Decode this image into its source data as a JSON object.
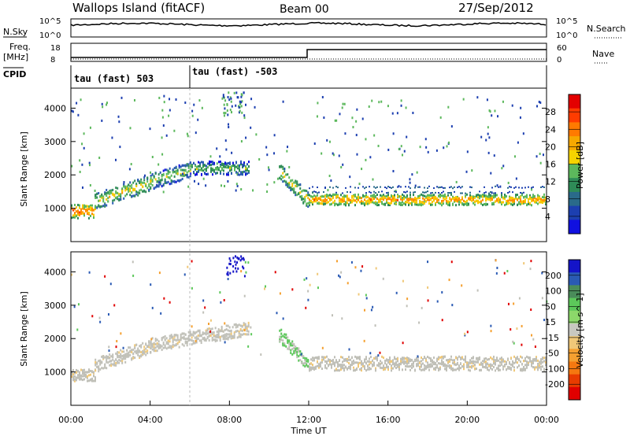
{
  "header": {
    "site": "Wallops Island (fitACF)",
    "beam": "Beam 00",
    "date": "27/Sep/2012"
  },
  "status_panels": {
    "nsky_label": "N.Sky",
    "nsky_ticks": [
      "10^5",
      "10^0"
    ],
    "nsearch_label": "N.Search",
    "nsearch_ticks": [
      "10^5",
      "10^0"
    ],
    "freq_label": "Freq.",
    "freq_unit": "[MHz]",
    "freq_ticks": [
      "18",
      "8"
    ],
    "nave_label": "Nave",
    "nave_ticks": [
      "60",
      "0"
    ],
    "cpid_label": "CPID",
    "cpid_segments": [
      "tau (fast) 503",
      "tau (fast) -503"
    ]
  },
  "panels": {
    "power": {
      "ylabel": "Slant Range [km]",
      "cbar_label": "Power [dB]",
      "cbar_ticks": [
        "28",
        "24",
        "20",
        "16",
        "12",
        "8",
        "4"
      ],
      "cbar_colors": [
        "#e30000",
        "#ff3c00",
        "#ff7a00",
        "#f6a800",
        "#f6d400",
        "#5cb85c",
        "#2e8b57",
        "#2a6a8a",
        "#1c3fb0",
        "#1010e0"
      ]
    },
    "velocity": {
      "ylabel": "Slant Range [km]",
      "cbar_label": "Velocity [m s^-1]",
      "cbar_ticks": [
        "200",
        "100",
        "50",
        "15",
        "-15",
        "-50",
        "-100",
        "-200"
      ],
      "cbar_colors": [
        "#1414c8",
        "#2a5ab4",
        "#4a8c5a",
        "#5cc85a",
        "#8cd86a",
        "#c8c8c0",
        "#f0c878",
        "#f5a030",
        "#f57810",
        "#e83c00",
        "#e00000"
      ]
    }
  },
  "axis": {
    "xlabel": "Time UT",
    "xticks": [
      "00:00",
      "04:00",
      "08:00",
      "12:00",
      "16:00",
      "20:00",
      "00:00"
    ],
    "yticks": [
      "1000",
      "2000",
      "3000",
      "4000"
    ]
  },
  "chart_data": [
    {
      "type": "heatmap",
      "title": "Wallops Island (fitACF)",
      "subtitle": "Beam 00",
      "xlabel": "Time UT",
      "ylabel": "Slant Range [km]",
      "xlim_hours": [
        0,
        24
      ],
      "ylim_km": [
        0,
        4600
      ],
      "colorbar": "Power [dB]",
      "colorbar_range": [
        0,
        30
      ],
      "bands": [
        {
          "t0": 0.0,
          "t1": 1.2,
          "r_center": 900,
          "width": 250,
          "value_db": 26
        },
        {
          "t0": 1.2,
          "t1": 4.0,
          "r_center": 1450,
          "width": 300,
          "value_db": 20
        },
        {
          "t0": 4.0,
          "t1": 6.0,
          "r_center": 1950,
          "width": 300,
          "value_db": 18
        },
        {
          "t0": 6.0,
          "t1": 9.0,
          "r_center": 2200,
          "width": 250,
          "value_db": 16
        },
        {
          "t0": 10.5,
          "t1": 12.0,
          "r_center": 1250,
          "width": 300,
          "value_db": 20
        },
        {
          "t0": 12.0,
          "t1": 24.0,
          "r_center": 1250,
          "width": 200,
          "value_db": 24
        }
      ]
    },
    {
      "type": "heatmap",
      "xlabel": "Time UT",
      "ylabel": "Slant Range [km]",
      "xlim_hours": [
        0,
        24
      ],
      "ylim_km": [
        0,
        4600
      ],
      "colorbar": "Velocity [m s^-1]",
      "colorbar_range": [
        -250,
        250
      ],
      "bands": [
        {
          "t0": 0.0,
          "t1": 1.2,
          "r_center": 900,
          "width": 250,
          "value_ms": 0
        },
        {
          "t0": 1.2,
          "t1": 4.0,
          "r_center": 1450,
          "width": 300,
          "value_ms": 0
        },
        {
          "t0": 4.0,
          "t1": 9.0,
          "r_center": 2100,
          "width": 300,
          "value_ms": 0
        },
        {
          "t0": 10.5,
          "t1": 12.0,
          "r_center": 1300,
          "width": 300,
          "value_ms": 30
        },
        {
          "t0": 12.0,
          "t1": 24.0,
          "r_center": 1250,
          "width": 300,
          "value_ms": 0
        }
      ]
    }
  ]
}
